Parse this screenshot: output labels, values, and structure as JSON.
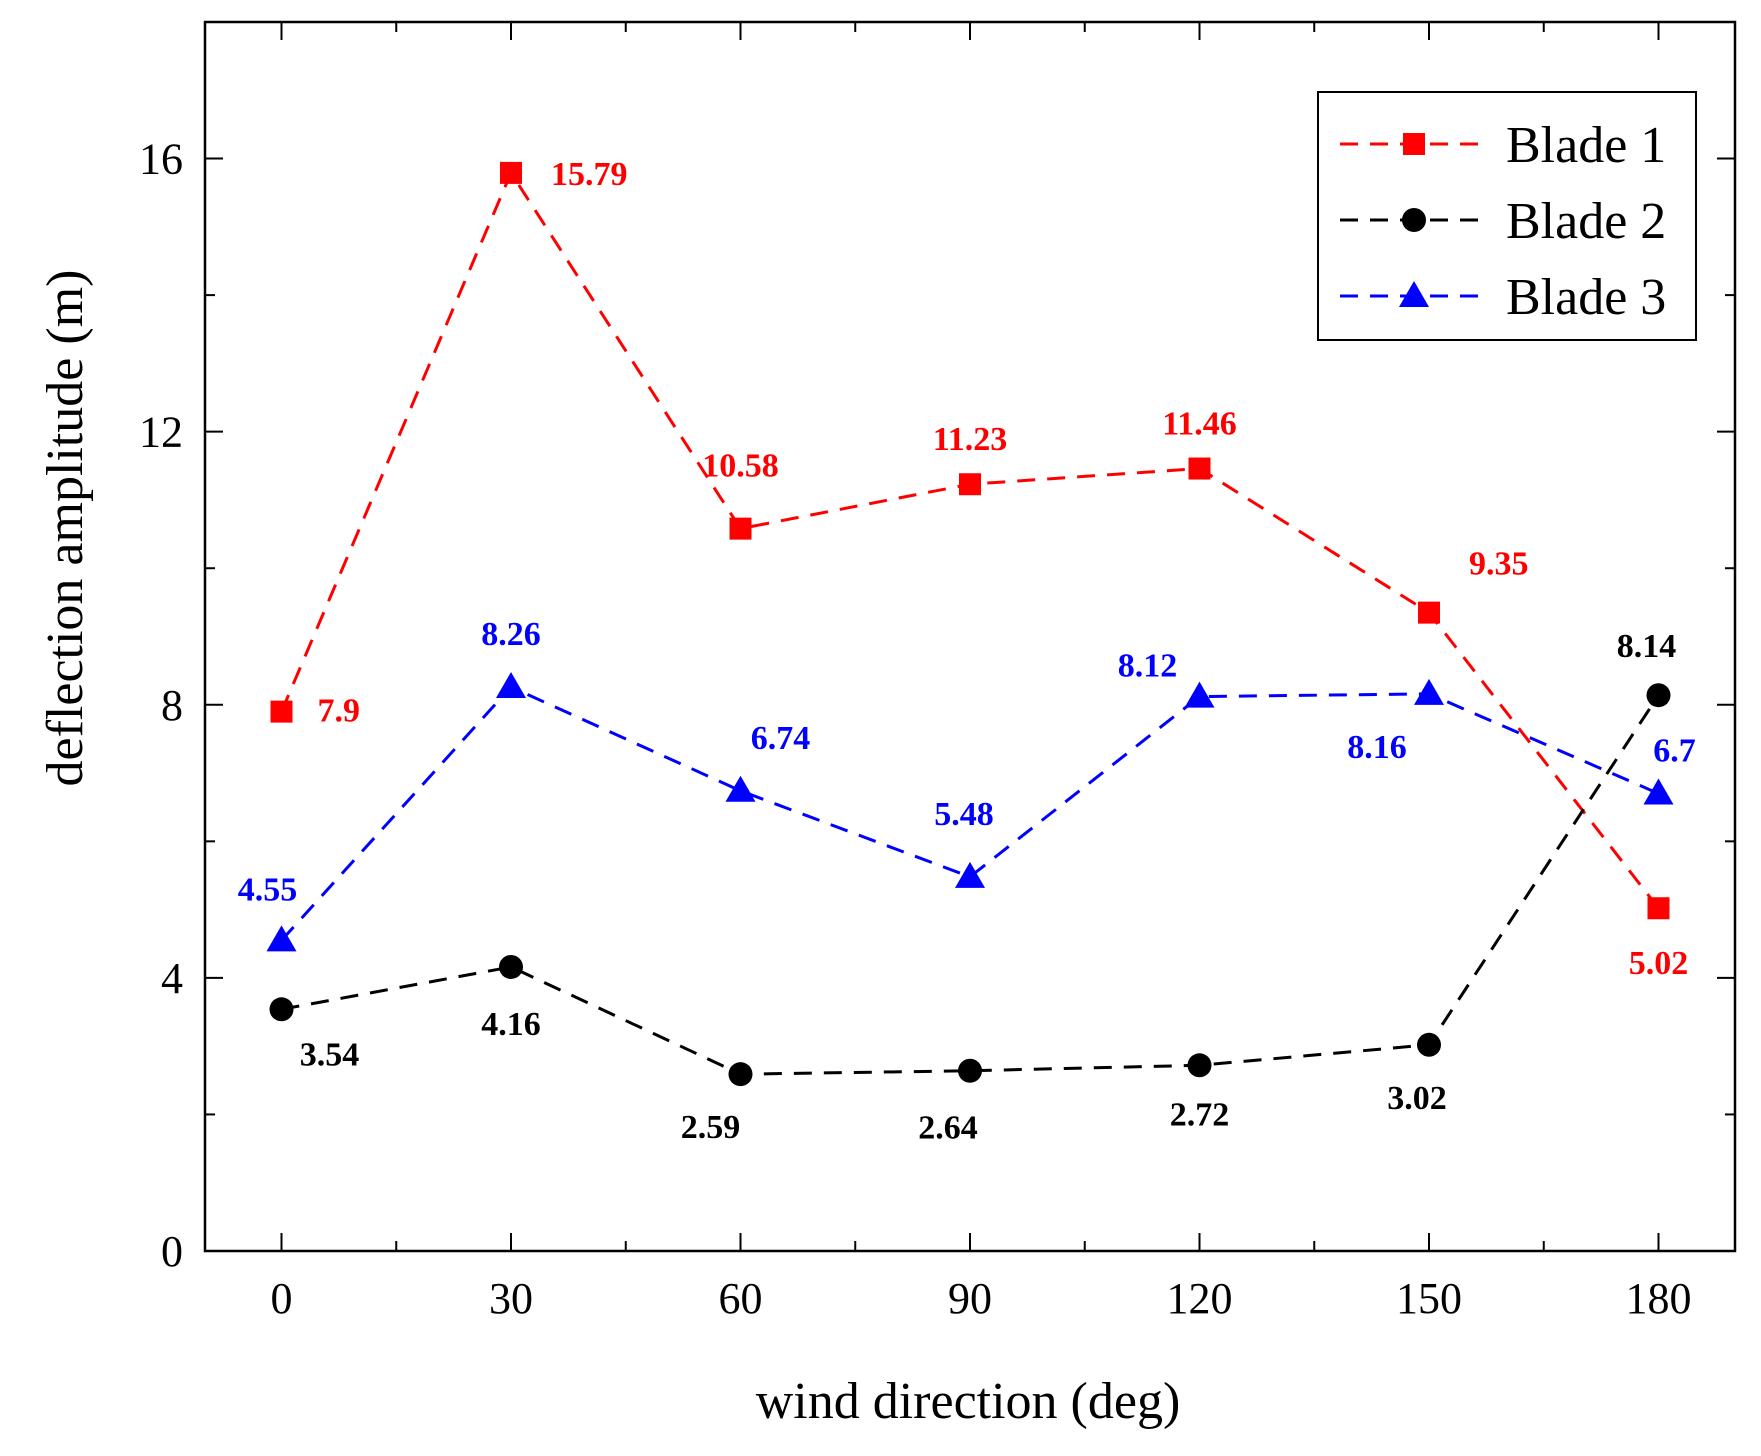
{
  "chart_data": {
    "type": "line",
    "title": "",
    "xlabel": "wind direction (deg)",
    "ylabel": "deflection amplitude (m)",
    "xlim": [
      -10,
      190
    ],
    "ylim": [
      0,
      18
    ],
    "x_ticks": [
      0,
      30,
      60,
      90,
      120,
      150,
      180
    ],
    "y_ticks": [
      0,
      4,
      8,
      12,
      16
    ],
    "x": [
      0,
      30,
      60,
      90,
      120,
      150,
      180
    ],
    "legend_position": "top-right",
    "series": [
      {
        "name": "Blade 1",
        "color": "#ff0000",
        "marker": "square",
        "values": [
          7.9,
          15.79,
          10.58,
          11.23,
          11.46,
          9.35,
          5.02
        ],
        "labels": [
          "7.9",
          "15.79",
          "10.58",
          "11.23",
          "11.46",
          "9.35",
          "5.02"
        ]
      },
      {
        "name": "Blade 2",
        "color": "#000000",
        "marker": "circle",
        "values": [
          3.54,
          4.16,
          2.59,
          2.64,
          2.72,
          3.02,
          8.14
        ],
        "labels": [
          "3.54",
          "4.16",
          "2.59",
          "2.64",
          "2.72",
          "3.02",
          "8.14"
        ]
      },
      {
        "name": "Blade 3",
        "color": "#0000ff",
        "marker": "triangle",
        "values": [
          4.55,
          8.26,
          6.74,
          5.48,
          8.12,
          8.16,
          6.7
        ],
        "labels": [
          "4.55",
          "8.26",
          "6.74",
          "5.48",
          "8.12",
          "8.16",
          "6.7"
        ]
      }
    ]
  }
}
